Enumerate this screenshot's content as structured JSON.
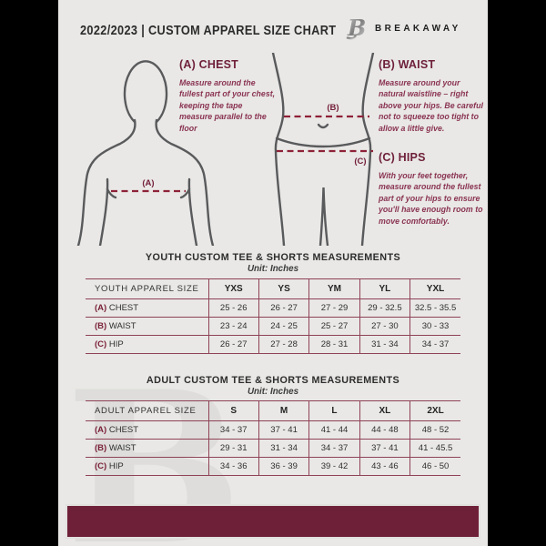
{
  "page": {
    "header": {
      "title": "2022/2023  |  CUSTOM APPAREL SIZE CHART",
      "brand": "BREAKAWAY",
      "logo_letter": "B"
    },
    "measure_guide": {
      "chest": {
        "heading": "(A) CHEST",
        "description": "Measure around the fullest part of your chest, keeping the tape measure parallel to the floor",
        "marker": "(A)"
      },
      "waist": {
        "heading": "(B) WAIST",
        "description": "Measure around your natural waistline – right above your hips. Be careful not to squeeze too tight to allow a little give.",
        "marker": "(B)"
      },
      "hips": {
        "heading": "(C) HIPS",
        "description": "With your feet together, measure around the fullest part of your hips to ensure you'll have enough room to move comfortably.",
        "marker": "(C)"
      }
    },
    "youth_table": {
      "title": "YOUTH CUSTOM TEE & SHORTS MEASUREMENTS",
      "unit": "Unit: Inches",
      "header": [
        "YOUTH APPAREL SIZE",
        "YXS",
        "YS",
        "YM",
        "YL",
        "YXL"
      ],
      "rows": [
        {
          "prefix": "(A)",
          "label": "CHEST",
          "values": [
            "25 - 26",
            "26 - 27",
            "27 - 29",
            "29 - 32.5",
            "32.5 - 35.5"
          ]
        },
        {
          "prefix": "(B)",
          "label": "WAIST",
          "values": [
            "23 - 24",
            "24 - 25",
            "25 - 27",
            "27 - 30",
            "30 - 33"
          ]
        },
        {
          "prefix": "(C)",
          "label": "HIP",
          "values": [
            "26 - 27",
            "27 - 28",
            "28 - 31",
            "31 - 34",
            "34 - 37"
          ]
        }
      ]
    },
    "adult_table": {
      "title": "ADULT CUSTOM TEE & SHORTS MEASUREMENTS",
      "unit": "Unit: Inches",
      "header": [
        "ADULT APPAREL SIZE",
        "S",
        "M",
        "L",
        "XL",
        "2XL"
      ],
      "rows": [
        {
          "prefix": "(A)",
          "label": "CHEST",
          "values": [
            "34 - 37",
            "37 - 41",
            "41 - 44",
            "44 - 48",
            "48 - 52"
          ]
        },
        {
          "prefix": "(B)",
          "label": "WAIST",
          "values": [
            "29 - 31",
            "31 - 34",
            "34 - 37",
            "37 - 41",
            "41 - 45.5"
          ]
        },
        {
          "prefix": "(C)",
          "label": "HIP",
          "values": [
            "34 - 36",
            "36 - 39",
            "39 - 42",
            "43 - 46",
            "46 - 50"
          ]
        }
      ]
    },
    "watermark_letter": "B",
    "colors": {
      "page_bg": "#E9E8E6",
      "side_bars": "#000000",
      "maroon_footer": "#6E2038",
      "table_border": "#8F4258",
      "dashed_line": "#8E2138",
      "heading_maroon": "#6E1F3A",
      "description_maroon": "#8A3352",
      "figure_outline": "#595A5C"
    }
  }
}
